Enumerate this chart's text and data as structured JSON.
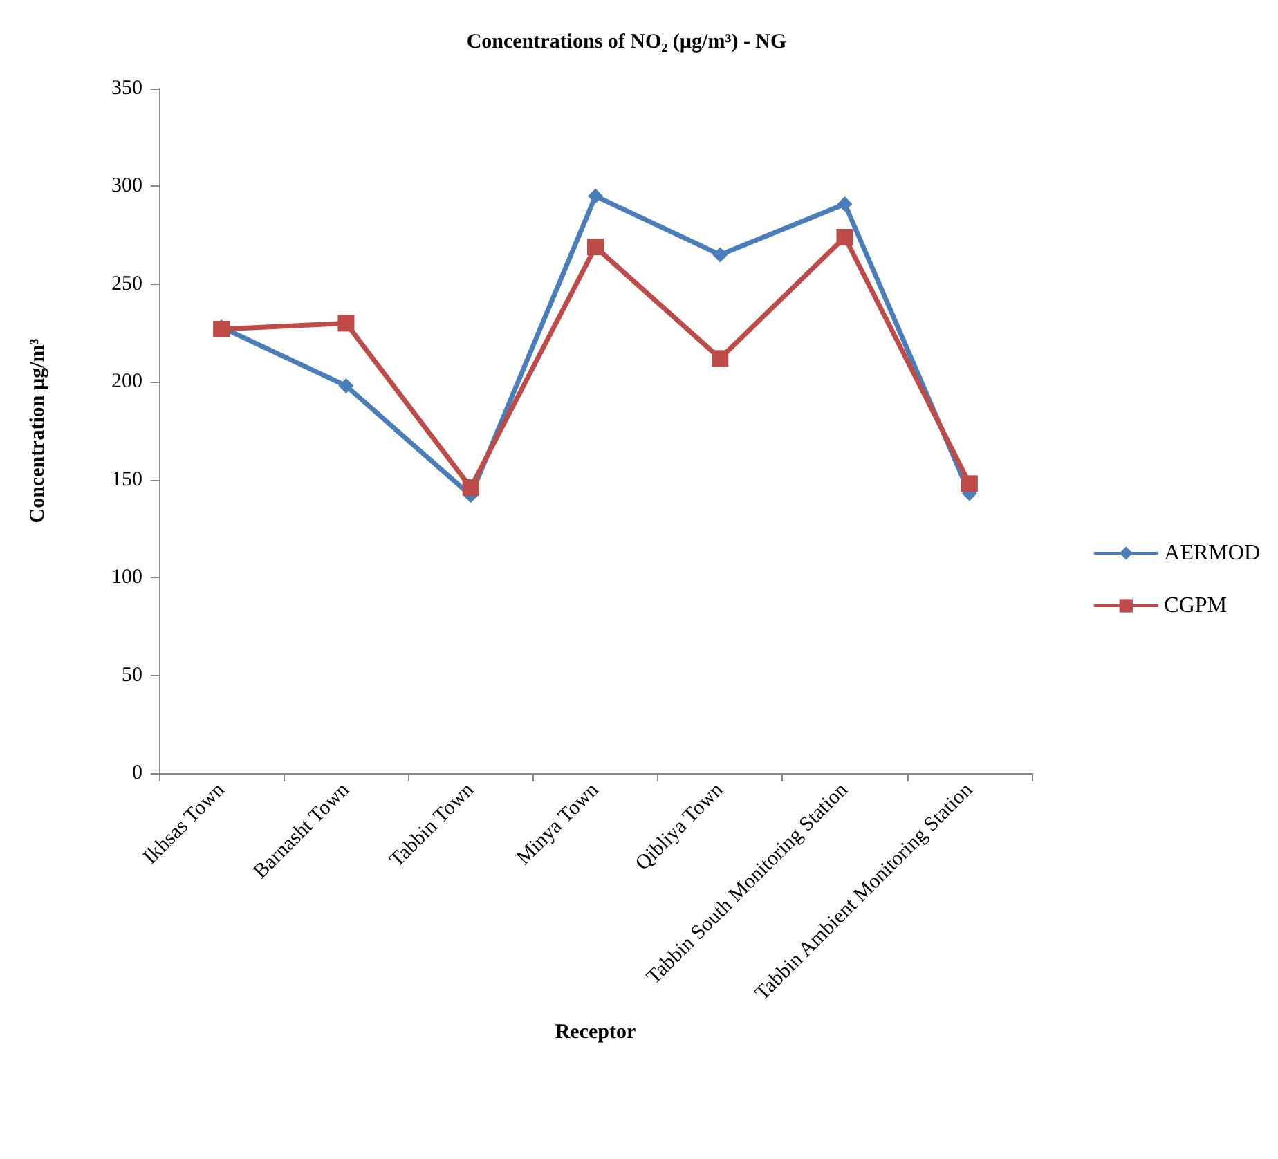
{
  "chart_data": {
    "type": "line",
    "title": "Concentrations of NO₂ (µg/m³) - NG",
    "xlabel": "Receptor",
    "ylabel": "Concentration µg/m³",
    "categories": [
      "Ikhsas Town",
      "Barnasht Town",
      "Tabbin Town",
      "Minya Town",
      "Qibliya Town",
      "Tabbin South Monitoring Station",
      "Tabbin Ambient Monitoring Station"
    ],
    "series": [
      {
        "name": "AERMOD",
        "color": "#4a7ebb",
        "marker": "diamond",
        "values": [
          228,
          198,
          142,
          295,
          265,
          291,
          143
        ]
      },
      {
        "name": "CGPM",
        "color": "#be4b48",
        "marker": "square",
        "values": [
          227,
          230,
          146,
          269,
          212,
          274,
          148
        ]
      }
    ],
    "ylim": [
      0,
      350
    ],
    "yticks": [
      0,
      50,
      100,
      150,
      200,
      250,
      300,
      350
    ],
    "grid": false,
    "legend": "right"
  }
}
